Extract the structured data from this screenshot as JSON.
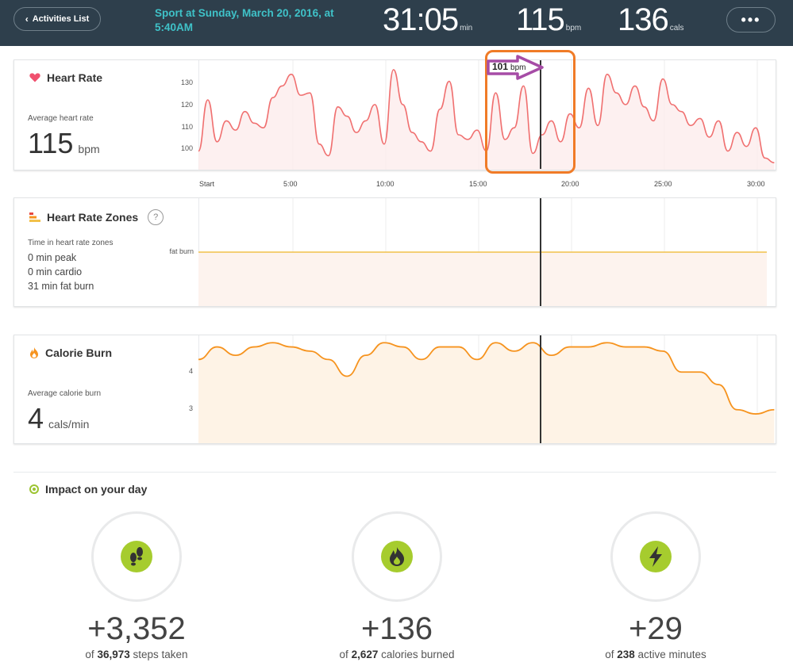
{
  "header": {
    "back_label": "Activities List",
    "title": "Sport at Sunday, March 20, 2016, at 5:40AM",
    "duration": {
      "value": "31:05",
      "unit": "min"
    },
    "heart_rate": {
      "value": "115",
      "unit": "bpm"
    },
    "calories": {
      "value": "136",
      "unit": "cals"
    },
    "more_label": "•••"
  },
  "heart_rate_card": {
    "title": "Heart Rate",
    "avg_label": "Average heart rate",
    "avg_value": "115",
    "avg_unit": "bpm",
    "tooltip_value": "101",
    "tooltip_unit": "bpm",
    "y_ticks": [
      "130",
      "120",
      "110",
      "100"
    ],
    "x_ticks": [
      "Start",
      "5:00",
      "10:00",
      "15:00",
      "20:00",
      "25:00",
      "30:00"
    ]
  },
  "zones_card": {
    "title": "Heart Rate Zones",
    "help": "?",
    "subtitle": "Time in heart rate zones",
    "lines": [
      "0 min peak",
      "0 min cardio",
      "31 min fat burn"
    ],
    "zone_label": "fat burn"
  },
  "calorie_card": {
    "title": "Calorie Burn",
    "avg_label": "Average calorie burn",
    "avg_value": "4",
    "avg_unit": "cals/min",
    "y_ticks": [
      "4",
      "3"
    ]
  },
  "impact": {
    "title": "Impact on your day",
    "items": [
      {
        "icon": "footsteps-icon",
        "delta": "+3,352",
        "of": "of",
        "total": "36,973",
        "label": "steps taken"
      },
      {
        "icon": "flame-icon",
        "delta": "+136",
        "of": "of",
        "total": "2,627",
        "label": "calories burned"
      },
      {
        "icon": "lightning-icon",
        "delta": "+29",
        "of": "of",
        "total": "238",
        "label": "active minutes"
      }
    ]
  },
  "colors": {
    "topbar": "#2e3f4c",
    "title_accent": "#3fc2c8",
    "heart_line": "#f07070",
    "zone_line": "#f2c14a",
    "calorie_line": "#f6931e",
    "annotation": "#f07b27",
    "arrow": "#a64ca6",
    "impact_badge": "#a6cc2e"
  },
  "chart_data": [
    {
      "type": "line",
      "title": "Heart Rate",
      "xlabel": "",
      "ylabel": "",
      "x_ticks": [
        "Start",
        "5:00",
        "10:00",
        "15:00",
        "20:00",
        "25:00",
        "30:00"
      ],
      "ylim": [
        92,
        137
      ],
      "x_minutes": [
        0,
        0.5,
        1,
        1.5,
        2,
        2.5,
        3,
        3.5,
        4,
        4.5,
        5,
        5.5,
        6,
        6.5,
        7,
        7.5,
        8,
        8.5,
        9,
        9.5,
        10,
        10.5,
        11,
        11.5,
        12,
        12.5,
        13,
        13.5,
        14,
        14.5,
        15,
        15.5,
        16,
        16.5,
        17,
        17.5,
        18,
        18.5,
        19,
        19.5,
        20,
        20.5,
        21,
        21.5,
        22,
        22.5,
        23,
        23.5,
        24,
        24.5,
        25,
        25.5,
        26,
        26.5,
        27,
        27.5,
        28,
        28.5,
        29,
        29.5,
        30,
        30.5,
        31
      ],
      "values": [
        100,
        122,
        104,
        113,
        109,
        117,
        112,
        110,
        123,
        128,
        133,
        124,
        125,
        103,
        98,
        119,
        115,
        108,
        113,
        120,
        103,
        135,
        120,
        108,
        104,
        100,
        118,
        130,
        107,
        105,
        109,
        100,
        125,
        105,
        110,
        128,
        99,
        107,
        113,
        104,
        116,
        110,
        127,
        111,
        133,
        125,
        120,
        128,
        119,
        113,
        131,
        120,
        117,
        111,
        114,
        106,
        113,
        100,
        108,
        102,
        110,
        97,
        95
      ]
    },
    {
      "type": "line",
      "title": "Heart Rate Zones",
      "zone": "fat burn",
      "values": [
        1
      ]
    },
    {
      "type": "area",
      "title": "Calorie Burn",
      "xlabel": "",
      "ylabel": "",
      "ylim": [
        2.2,
        4.7
      ],
      "x_minutes": [
        0,
        1,
        2,
        3,
        4,
        5,
        6,
        7,
        8,
        9,
        10,
        11,
        12,
        13,
        14,
        15,
        16,
        17,
        18,
        19,
        20,
        21,
        22,
        23,
        24,
        25,
        26,
        27,
        28,
        29,
        30,
        31
      ],
      "values": [
        4.2,
        4.5,
        4.3,
        4.5,
        4.6,
        4.5,
        4.4,
        4.2,
        3.8,
        4.3,
        4.6,
        4.5,
        4.2,
        4.5,
        4.5,
        4.2,
        4.6,
        4.4,
        4.6,
        4.3,
        4.5,
        4.5,
        4.6,
        4.5,
        4.5,
        4.4,
        3.9,
        3.9,
        3.6,
        3.0,
        2.9,
        3.0
      ]
    }
  ]
}
